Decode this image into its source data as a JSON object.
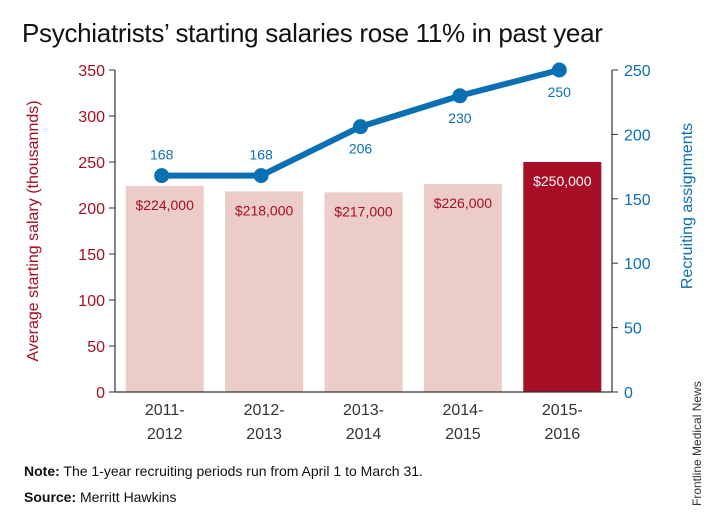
{
  "title": "Psychiatrists’ starting salaries rose 11% in past year",
  "note_label": "Note:",
  "note_text": "The 1-year recruiting periods run from April 1 to March 31.",
  "source_label": "Source:",
  "source_text": "Merritt Hawkins",
  "credit": "Frontline Medical News",
  "colors": {
    "salary_axis": "#a50e24",
    "bar_light": "#ecccc7",
    "bar_highlight": "#a50e24",
    "line": "#0a6fb3",
    "bar_label_light": "#a50e24",
    "bar_label_highlight": "#ffffff"
  },
  "chart_data": {
    "type": "bar",
    "categories": [
      [
        "2011-",
        "2012"
      ],
      [
        "2012-",
        "2013"
      ],
      [
        "2013-",
        "2014"
      ],
      [
        "2014-",
        "2015"
      ],
      [
        "2015-",
        "2016"
      ]
    ],
    "series": [
      {
        "type": "bar",
        "axis": "left",
        "values": [
          224,
          218,
          217,
          226,
          250
        ],
        "labels": [
          "$224,000",
          "$218,000",
          "$217,000",
          "$226,000",
          "$250,000"
        ],
        "highlight_index": 4
      },
      {
        "type": "line",
        "axis": "right",
        "values": [
          168,
          168,
          206,
          230,
          250
        ],
        "labels": [
          "168",
          "168",
          "206",
          "230",
          "250"
        ]
      }
    ],
    "ylabel": "Average starting salary (thousannds)",
    "ylim": [
      0,
      350
    ],
    "yticks": [
      0,
      50,
      100,
      150,
      200,
      250,
      300,
      350
    ],
    "y2label": "Recruiting assignments",
    "y2lim": [
      0,
      250
    ],
    "y2ticks": [
      0,
      50,
      100,
      150,
      200,
      250
    ],
    "grid": false,
    "legend": "none"
  }
}
